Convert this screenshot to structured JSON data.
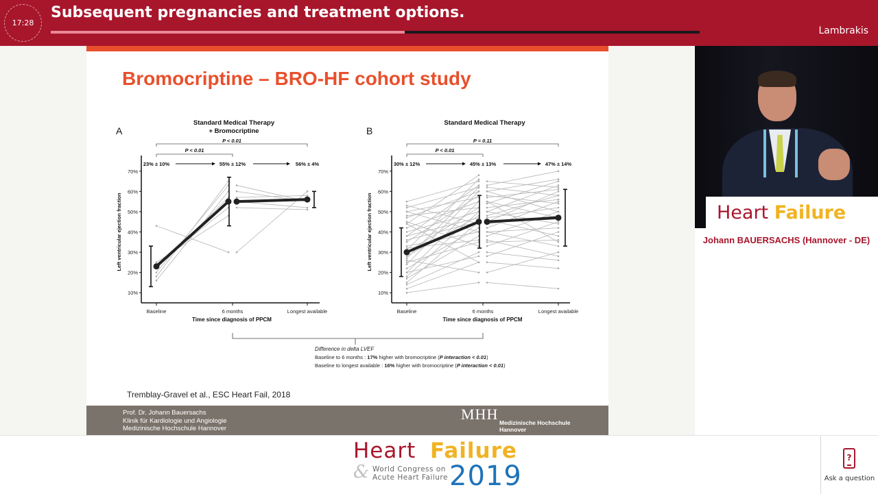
{
  "header": {
    "timer": "17:28",
    "session_title": "Subsequent pregnancies and treatment options.",
    "progress_fraction": 0.545,
    "speaker_short": "Lambrakis"
  },
  "slide": {
    "title": "Bromocriptine – BRO-HF cohort study",
    "citation": "Tremblay-Gravel et al., ESC Heart Fail, 2018",
    "footer_left": [
      "Prof. Dr. Johann Bauersachs",
      "Klinik für Kardiologie und Angiologie",
      "Medizinische Hochschule Hannover"
    ],
    "logo_text": "MHH",
    "logo_sub": [
      "Medizinische Hochschule",
      "Hannover"
    ],
    "accent_color": "#e8502c"
  },
  "chart_data": [
    {
      "type": "line",
      "panel_label": "A",
      "title": [
        "Standard Medical Therapy",
        "+ Bromocriptine"
      ],
      "xlabel": "Time since diagnosis of PPCM",
      "ylabel": "Left ventricular ejection fraction",
      "categories": [
        "Baseline",
        "6 months",
        "Longest available"
      ],
      "yticks": [
        "10%",
        "20%",
        "30%",
        "40%",
        "50%",
        "60%",
        "70%"
      ],
      "ylim": [
        5,
        75
      ],
      "mean_labels": [
        "23% ± 10%",
        "55% ± 12%",
        "56% ± 4%"
      ],
      "means": [
        23,
        55,
        56
      ],
      "sd": [
        10,
        12,
        4
      ],
      "brackets": [
        {
          "label": "P < 0.01",
          "from": 0,
          "to": 2,
          "level": 0
        },
        {
          "label": "P < 0.01",
          "from": 0,
          "to": 1,
          "level": 1
        }
      ],
      "individual_first": [
        [
          43,
          30
        ],
        [
          18,
          65
        ],
        [
          20,
          63
        ],
        [
          16,
          60
        ],
        [
          22,
          57
        ],
        [
          24,
          52
        ],
        [
          25,
          48
        ]
      ],
      "individual_second": [
        [
          30,
          60
        ],
        [
          63,
          55
        ],
        [
          60,
          55
        ],
        [
          57,
          58
        ],
        [
          55,
          52
        ],
        [
          52,
          51
        ]
      ]
    },
    {
      "type": "line",
      "panel_label": "B",
      "title": [
        "Standard Medical Therapy"
      ],
      "xlabel": "Time since diagnosis of PPCM",
      "ylabel": "Left ventricular ejection fraction",
      "categories": [
        "Baseline",
        "6 months",
        "Longest available"
      ],
      "yticks": [
        "10%",
        "20%",
        "30%",
        "40%",
        "50%",
        "60%",
        "70%"
      ],
      "ylim": [
        5,
        75
      ],
      "mean_labels": [
        "30% ± 12%",
        "45% ± 13%",
        "47% ± 14%"
      ],
      "means": [
        30,
        45,
        47
      ],
      "sd": [
        12,
        13,
        14
      ],
      "brackets": [
        {
          "label": "P = 0.11",
          "from": 0,
          "to": 2,
          "level": 0
        },
        {
          "label": "P < 0.01",
          "from": 0,
          "to": 1,
          "level": 1
        }
      ],
      "individual_first": [
        [
          10,
          15
        ],
        [
          12,
          25
        ],
        [
          14,
          30
        ],
        [
          15,
          45
        ],
        [
          17,
          38
        ],
        [
          18,
          50
        ],
        [
          20,
          55
        ],
        [
          22,
          42
        ],
        [
          24,
          60
        ],
        [
          25,
          35
        ],
        [
          27,
          62
        ],
        [
          28,
          48
        ],
        [
          30,
          52
        ],
        [
          31,
          66
        ],
        [
          33,
          40
        ],
        [
          35,
          58
        ],
        [
          36,
          45
        ],
        [
          38,
          63
        ],
        [
          40,
          50
        ],
        [
          42,
          55
        ],
        [
          44,
          68
        ],
        [
          45,
          33
        ],
        [
          47,
          60
        ],
        [
          48,
          52
        ],
        [
          50,
          57
        ],
        [
          52,
          62
        ],
        [
          53,
          44
        ],
        [
          55,
          65
        ],
        [
          20,
          28
        ],
        [
          26,
          20
        ],
        [
          32,
          36
        ],
        [
          38,
          47
        ],
        [
          44,
          25
        ],
        [
          50,
          40
        ]
      ],
      "individual_second": [
        [
          15,
          12
        ],
        [
          20,
          30
        ],
        [
          25,
          22
        ],
        [
          28,
          40
        ],
        [
          30,
          26
        ],
        [
          33,
          45
        ],
        [
          35,
          36
        ],
        [
          38,
          50
        ],
        [
          40,
          42
        ],
        [
          42,
          55
        ],
        [
          44,
          48
        ],
        [
          45,
          60
        ],
        [
          47,
          52
        ],
        [
          48,
          58
        ],
        [
          50,
          63
        ],
        [
          52,
          56
        ],
        [
          54,
          65
        ],
        [
          55,
          47
        ],
        [
          57,
          61
        ],
        [
          58,
          54
        ],
        [
          60,
          66
        ],
        [
          62,
          58
        ],
        [
          63,
          70
        ],
        [
          65,
          62
        ],
        [
          36,
          28
        ],
        [
          40,
          33
        ],
        [
          46,
          38
        ],
        [
          50,
          44
        ],
        [
          55,
          35
        ],
        [
          60,
          50
        ]
      ]
    }
  ],
  "diff_note": {
    "heading": "Difference in delta LVEF",
    "line1_pre": "Baseline to 6 months : ",
    "line1_bold": "17%",
    "line1_mid": " higher with bromocriptine (",
    "line1_italic": "P interaction < 0.01",
    "line1_end": ")",
    "line2_pre": "Baseline to longest available : ",
    "line2_bold": "16%",
    "line2_mid": " higher with bromocriptine (",
    "line2_italic": "P interaction < 0.01",
    "line2_end": ")"
  },
  "speaker": {
    "name": "Johann BAUERSACHS (Hannover - DE)",
    "banner_heart": "Heart ",
    "banner_failure": "Failure"
  },
  "branding": {
    "heart": "Heart",
    "failure": "Failure",
    "amp": "&",
    "subtitle": [
      "World Congress on",
      "Acute Heart Failure"
    ],
    "year": "2019"
  },
  "ask": {
    "label": "Ask a question",
    "icon": "phone-question-icon"
  },
  "colors": {
    "brand_red": "#a8162c",
    "brand_yellow": "#f0b323",
    "brand_blue": "#1e73b9"
  }
}
